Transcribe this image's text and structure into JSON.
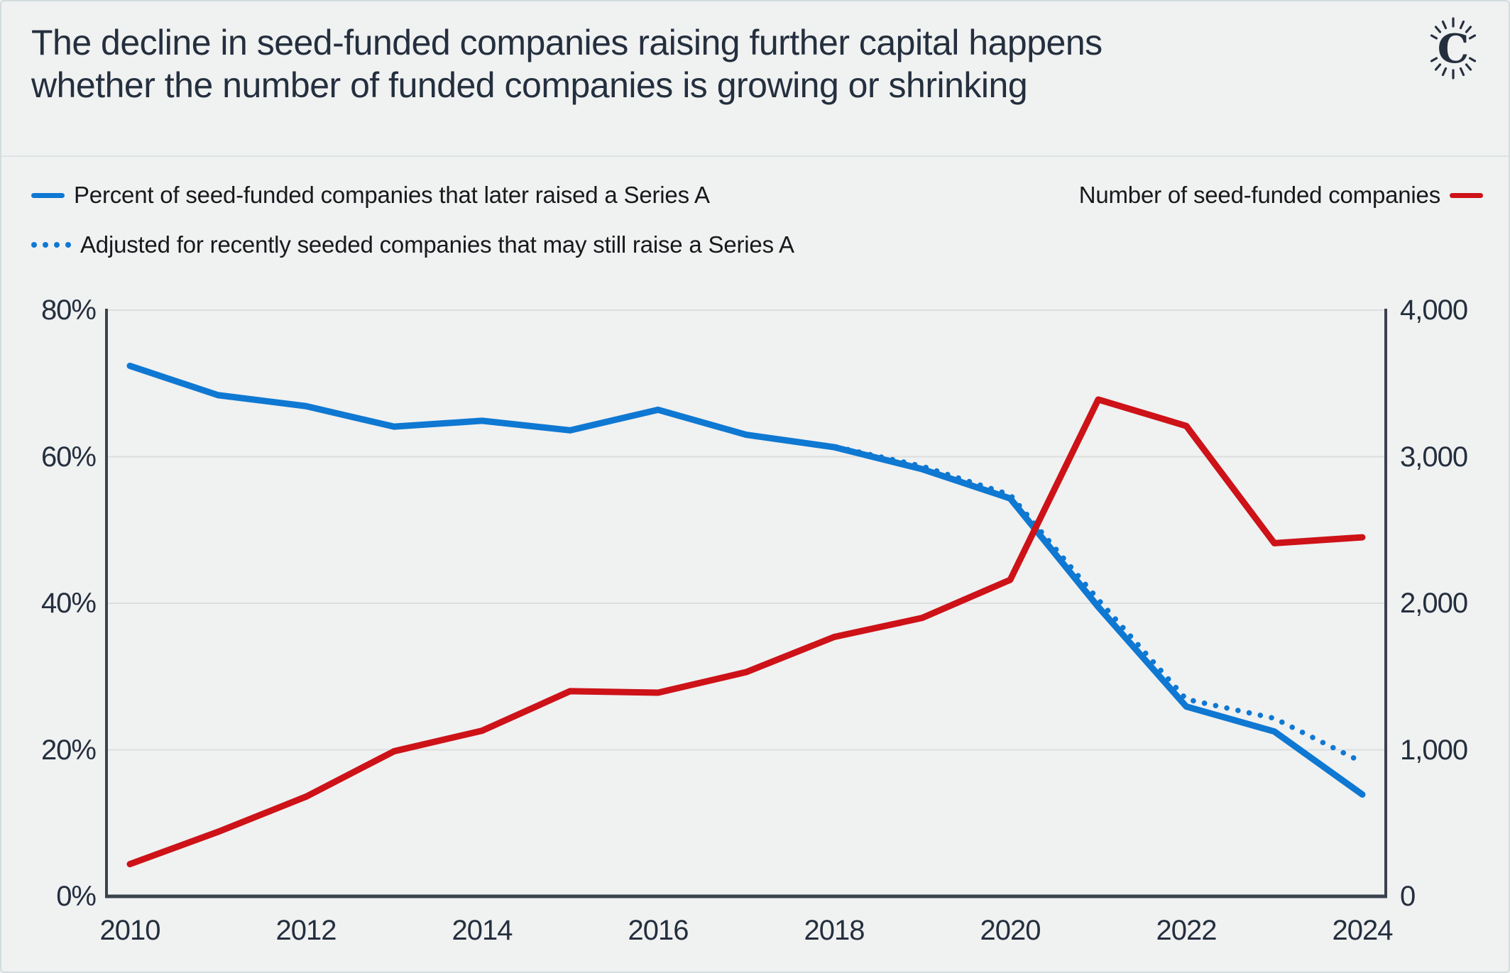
{
  "header": {
    "title": "The decline in seed-funded companies raising further capital happens whether the number of funded companies is growing or shrinking",
    "title_lines": [
      "The decline in seed-funded companies raising further capital happens",
      "whether the number of funded companies is growing or shrinking"
    ],
    "logo_letter": "C"
  },
  "colors": {
    "blue": "#0e78d2",
    "red": "#cd1218",
    "title_text": "#242f3e",
    "legend_text": "#17191c",
    "gridline": "#dcdedf",
    "axis": "#3a434d",
    "background": "#f0f1f1",
    "border": "#d3dcdf"
  },
  "legend": {
    "items": [
      {
        "id": "percent",
        "label": "Percent of seed-funded companies that later raised a Series A",
        "style": "solid",
        "color": "#0e78d2"
      },
      {
        "id": "adjusted",
        "label": "Adjusted for recently seeded companies that may still raise a Series A",
        "style": "dotted",
        "color": "#0e78d2"
      },
      {
        "id": "companies",
        "label": "Number of seed-funded companies",
        "style": "solid",
        "color": "#cd1218"
      }
    ]
  },
  "chart_data": {
    "type": "line",
    "title": "The decline in seed-funded companies raising further capital happens whether the number of funded companies is growing or shrinking",
    "grid": true,
    "legend_position": "top",
    "x_axis": {
      "range": [
        2010,
        2024
      ],
      "ticks": [
        {
          "v": 2010,
          "label": "2010"
        },
        {
          "v": 2012,
          "label": "2012"
        },
        {
          "v": 2014,
          "label": "2014"
        },
        {
          "v": 2016,
          "label": "2016"
        },
        {
          "v": 2018,
          "label": "2018"
        },
        {
          "v": 2020,
          "label": "2020"
        },
        {
          "v": 2022,
          "label": "2022"
        },
        {
          "v": 2024,
          "label": "2024"
        }
      ]
    },
    "y_axis_left": {
      "range": [
        0,
        80
      ],
      "unit": "percent",
      "ticks": [
        {
          "v": 80,
          "label": "80%"
        },
        {
          "v": 60,
          "label": "60%"
        },
        {
          "v": 40,
          "label": "40%"
        },
        {
          "v": 20,
          "label": "20%"
        },
        {
          "v": 0,
          "label": "0%"
        }
      ]
    },
    "y_axis_right": {
      "range": [
        0,
        4000
      ],
      "unit": "companies",
      "ticks": [
        {
          "v": 4000,
          "label": "4,000"
        },
        {
          "v": 3000,
          "label": "3,000"
        },
        {
          "v": 2000,
          "label": "2,000"
        },
        {
          "v": 1000,
          "label": "1,000"
        },
        {
          "v": 0,
          "label": "0"
        }
      ]
    },
    "series": [
      {
        "name": "Percent of seed-funded companies that later raised a Series A",
        "axis": "left",
        "style": "solid",
        "color": "#0e78d2",
        "x": [
          2010,
          2011,
          2012,
          2013,
          2014,
          2015,
          2016,
          2017,
          2018,
          2019,
          2020,
          2021,
          2022,
          2023,
          2024
        ],
        "values": [
          72.4,
          68.4,
          66.9,
          64.1,
          64.9,
          63.6,
          66.4,
          63.0,
          61.3,
          58.3,
          54.3,
          39.5,
          25.9,
          22.5,
          13.9
        ]
      },
      {
        "name": "Adjusted for recently seeded companies that may still raise a Series A",
        "axis": "left",
        "style": "dotted",
        "color": "#0e78d2",
        "x": [
          2017,
          2018,
          2019,
          2020,
          2021,
          2022,
          2023,
          2024
        ],
        "values": [
          63.0,
          61.4,
          58.7,
          54.8,
          40.5,
          26.9,
          24.3,
          18.3
        ]
      },
      {
        "name": "Number of seed-funded companies",
        "axis": "right",
        "style": "solid",
        "color": "#cd1218",
        "x": [
          2010,
          2011,
          2012,
          2013,
          2014,
          2015,
          2016,
          2017,
          2018,
          2019,
          2020,
          2021,
          2022,
          2023,
          2024
        ],
        "values": [
          220,
          440,
          680,
          990,
          1130,
          1400,
          1390,
          1530,
          1770,
          1900,
          2160,
          3390,
          3210,
          2410,
          2450
        ]
      }
    ]
  }
}
